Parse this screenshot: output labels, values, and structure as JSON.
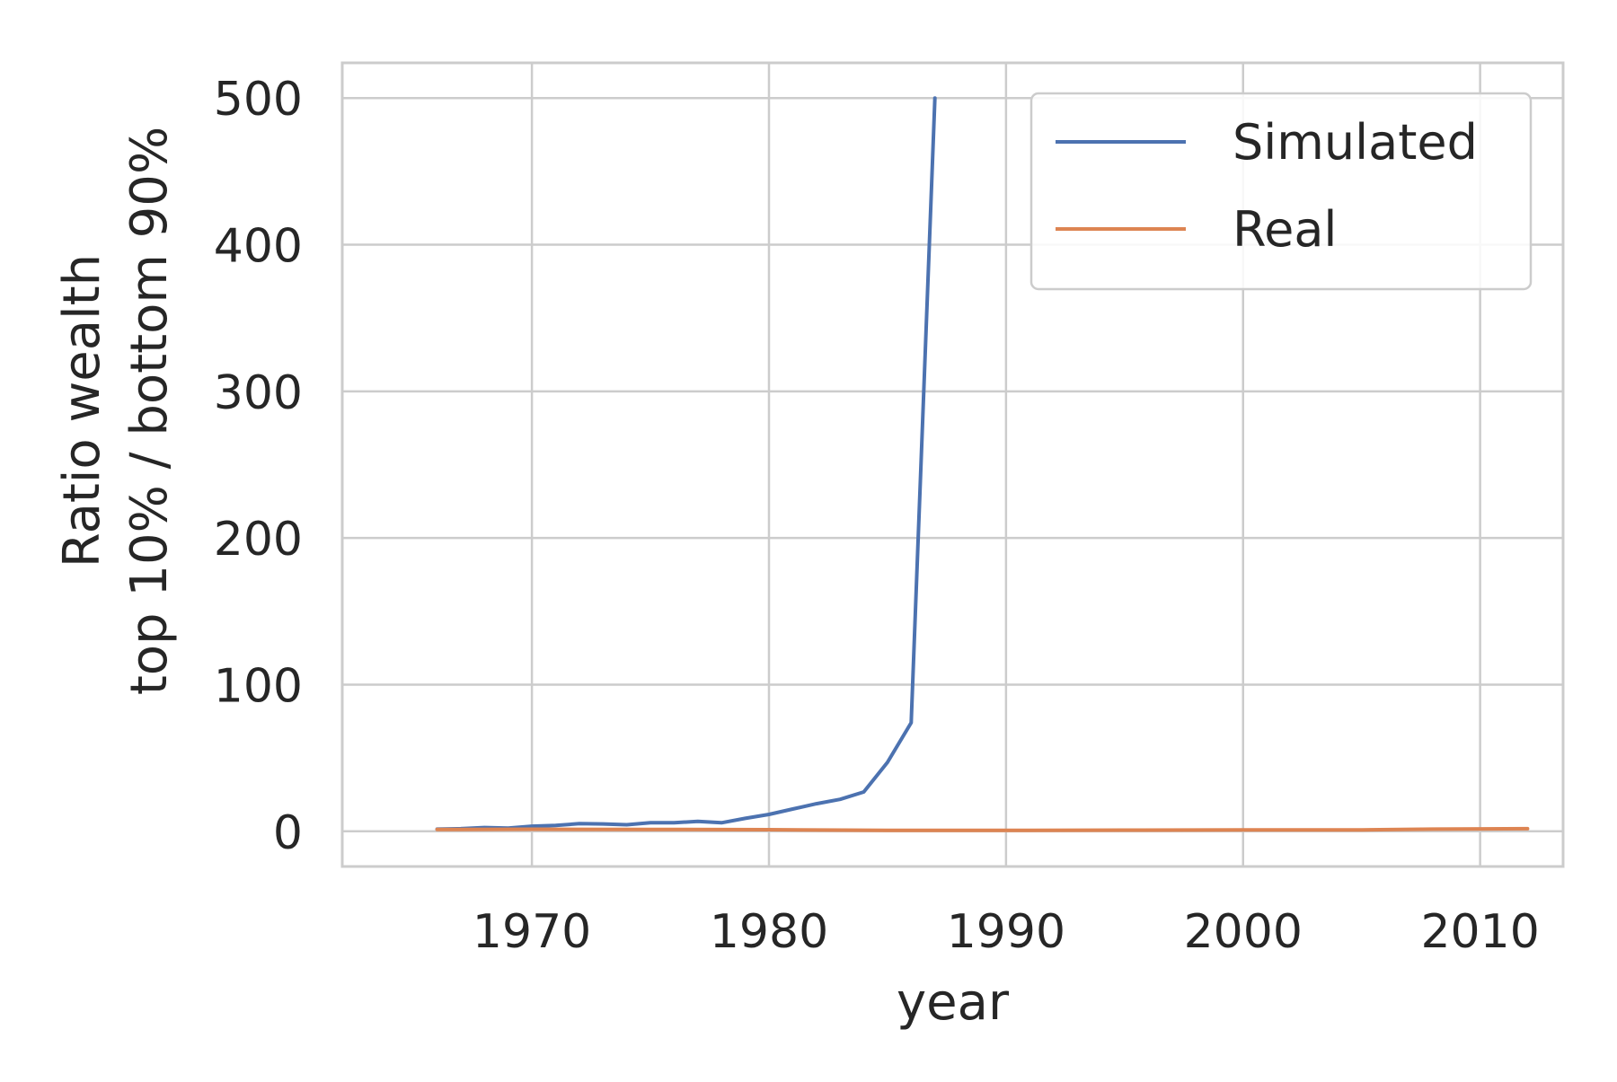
{
  "chart_data": {
    "type": "line",
    "xlabel": "year",
    "ylabel_lines": [
      "Ratio wealth",
      "top 10% / bottom 90%"
    ],
    "xlim": [
      1962,
      2013.5
    ],
    "ylim": [
      -24,
      524
    ],
    "xticks": [
      1970,
      1980,
      1990,
      2000,
      2010
    ],
    "yticks": [
      0,
      100,
      200,
      300,
      400,
      500
    ],
    "grid": true,
    "legend_position": "top-right",
    "series": [
      {
        "name": "Simulated",
        "color": "#4c72b0",
        "x": [
          1966,
          1967,
          1968,
          1969,
          1970,
          1971,
          1972,
          1973,
          1974,
          1975,
          1976,
          1977,
          1978,
          1979,
          1980,
          1981,
          1982,
          1983,
          1984,
          1985,
          1986,
          1987
        ],
        "y": [
          1.5,
          1.8,
          2.6,
          2.2,
          3.5,
          4.0,
          5.2,
          5.0,
          4.5,
          5.8,
          5.8,
          6.8,
          5.8,
          8.8,
          11.5,
          15.2,
          18.8,
          21.8,
          26.8,
          47.0,
          74.0,
          500.0
        ]
      },
      {
        "name": "Real",
        "color": "#dd8452",
        "x": [
          1966,
          1970,
          1975,
          1980,
          1985,
          1990,
          1995,
          2000,
          2005,
          2008,
          2012
        ],
        "y": [
          1.2,
          1.4,
          1.3,
          1.1,
          0.6,
          0.6,
          0.8,
          1.0,
          1.0,
          1.5,
          1.8
        ]
      }
    ]
  }
}
